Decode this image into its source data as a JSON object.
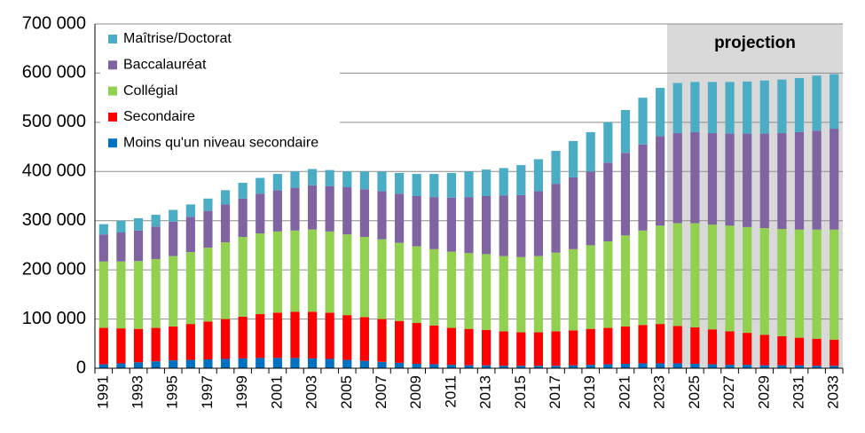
{
  "chart_data": {
    "type": "stacked_bar",
    "categories": [
      "1991",
      null,
      "1993",
      null,
      "1995",
      null,
      "1997",
      null,
      "1999",
      null,
      "2001",
      null,
      "2003",
      null,
      "2005",
      null,
      "2007",
      null,
      "2009",
      null,
      "2011",
      null,
      "2013",
      null,
      "2015",
      null,
      "2017",
      null,
      "2019",
      null,
      "2021",
      null,
      "2023",
      null,
      "2025",
      null,
      "2027",
      null,
      "2029",
      null,
      "2031",
      null,
      "2033"
    ],
    "series": [
      {
        "name": "Moins qu'un niveau secondaire",
        "color": "#0070c0",
        "values": [
          8000,
          10000,
          12000,
          14000,
          16000,
          17000,
          18000,
          19000,
          20000,
          21000,
          21000,
          21000,
          20000,
          19000,
          17000,
          15000,
          13000,
          11000,
          9000,
          8000,
          7000,
          6000,
          6000,
          5000,
          5000,
          5000,
          5000,
          6000,
          7000,
          8000,
          9000,
          10000,
          10000,
          10000,
          9000,
          8000,
          7000,
          7000,
          6000,
          6000,
          6000,
          5000,
          5000
        ]
      },
      {
        "name": "Secondaire",
        "color": "#ff0000",
        "values": [
          74000,
          71000,
          68000,
          68000,
          69000,
          73000,
          77000,
          81000,
          85000,
          89000,
          92000,
          94000,
          95000,
          94000,
          91000,
          89000,
          87000,
          85000,
          83000,
          79000,
          75000,
          74000,
          72000,
          70000,
          68000,
          68000,
          70000,
          71000,
          73000,
          74000,
          76000,
          78000,
          80000,
          76000,
          74000,
          71000,
          68000,
          65000,
          62000,
          59000,
          56000,
          55000,
          53000
        ]
      },
      {
        "name": "Collégial",
        "color": "#92d050",
        "values": [
          135000,
          136000,
          138000,
          140000,
          143000,
          146000,
          150000,
          156000,
          162000,
          164000,
          165000,
          165000,
          167000,
          165000,
          164000,
          163000,
          162000,
          159000,
          156000,
          155000,
          155000,
          154000,
          154000,
          153000,
          153000,
          155000,
          160000,
          165000,
          170000,
          176000,
          185000,
          192000,
          200000,
          209000,
          212000,
          213000,
          215000,
          215000,
          217000,
          218000,
          220000,
          222000,
          224000
        ]
      },
      {
        "name": "Baccalauréat",
        "color": "#8064a2",
        "values": [
          55000,
          59000,
          62000,
          66000,
          70000,
          72000,
          75000,
          77000,
          78000,
          81000,
          84000,
          87000,
          90000,
          92000,
          96000,
          97000,
          98000,
          100000,
          102000,
          106000,
          110000,
          114000,
          118000,
          123000,
          126000,
          132000,
          140000,
          146000,
          150000,
          160000,
          168000,
          175000,
          182000,
          183000,
          185000,
          186000,
          187000,
          190000,
          192000,
          195000,
          198000,
          201000,
          205000
        ]
      },
      {
        "name": "Maîtrise/Doctorat",
        "color": "#4bacc6",
        "values": [
          21000,
          24000,
          25000,
          24000,
          24000,
          25000,
          25000,
          29000,
          32000,
          32000,
          33000,
          33000,
          33000,
          33000,
          32000,
          36000,
          40000,
          42000,
          45000,
          47000,
          50000,
          52000,
          54000,
          56000,
          61000,
          65000,
          67000,
          74000,
          80000,
          82000,
          87000,
          95000,
          98000,
          102000,
          102000,
          104000,
          105000,
          106000,
          108000,
          109000,
          110000,
          112000,
          111000
        ]
      }
    ],
    "ylim": [
      0,
      700000
    ],
    "yticks": [
      0,
      {
        "value": 100000,
        "label": "100 000"
      },
      {
        "value": 200000,
        "label": "200 000"
      },
      {
        "value": 300000,
        "label": "300 000"
      },
      {
        "value": 400000,
        "label": "400 000"
      },
      {
        "value": 500000,
        "label": "500 000"
      },
      {
        "value": 600000,
        "label": "600 000"
      },
      {
        "value": 700000,
        "label": "700 000"
      }
    ],
    "grid": true,
    "legend": "upper left",
    "shade": {
      "label": "projection",
      "from": 33,
      "to": 42,
      "color": "#d9d9d9"
    }
  }
}
